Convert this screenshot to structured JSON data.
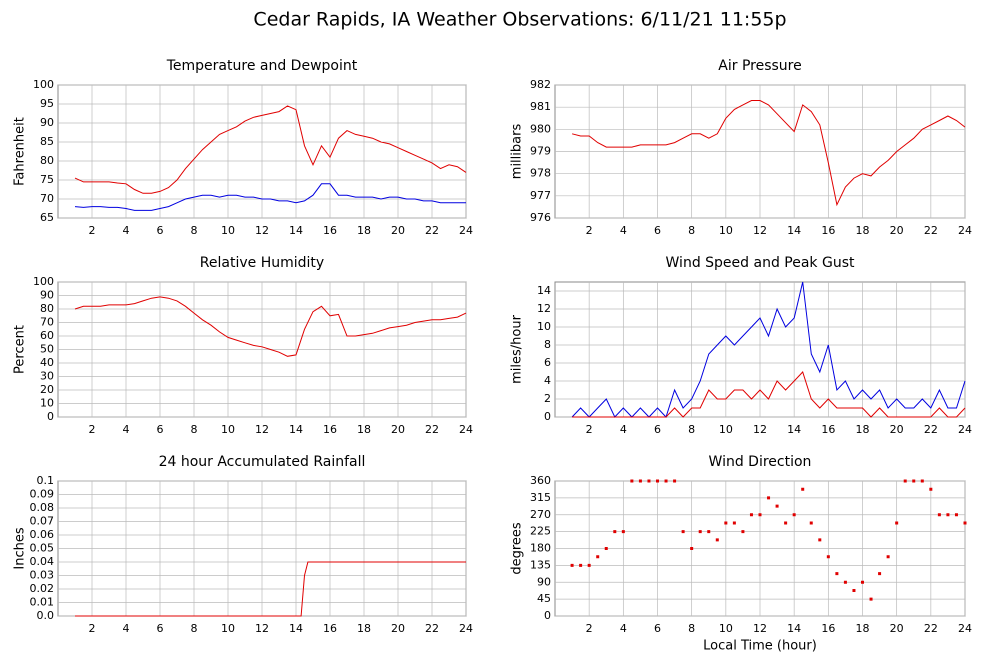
{
  "title": "Cedar Rapids, IA Weather Observations: 6/11/21 11:55p",
  "chart_data": [
    {
      "type": "line",
      "title": "Temperature and Dewpoint",
      "ylabel": "Fahrenheit",
      "x": [
        1,
        1.5,
        2,
        2.5,
        3,
        3.5,
        4,
        4.5,
        5,
        5.5,
        6,
        6.5,
        7,
        7.5,
        8,
        8.5,
        9,
        9.5,
        10,
        10.5,
        11,
        11.5,
        12,
        12.5,
        13,
        13.5,
        14,
        14.5,
        15,
        15.5,
        16,
        16.5,
        17,
        17.5,
        18,
        18.5,
        19,
        19.5,
        20,
        20.5,
        21,
        21.5,
        22,
        22.5,
        23,
        23.5,
        24
      ],
      "series": [
        {
          "color": "#e00000",
          "values": [
            75.5,
            74.5,
            74.5,
            74.5,
            74.5,
            74.2,
            74,
            72.5,
            71.5,
            71.5,
            72,
            73,
            75,
            78,
            80.5,
            83,
            85,
            87,
            88,
            89,
            90.5,
            91.5,
            92,
            92.5,
            93,
            94.5,
            93.5,
            84,
            79,
            84,
            81,
            86,
            88,
            87,
            86.5,
            86,
            85,
            84.5,
            83.5,
            82.5,
            81.5,
            80.5,
            79.5,
            78,
            79,
            78.5,
            77
          ]
        },
        {
          "color": "#0000e0",
          "values": [
            68,
            67.8,
            68,
            68,
            67.8,
            67.8,
            67.5,
            67,
            67,
            67,
            67.5,
            68,
            69,
            70,
            70.5,
            71,
            71,
            70.5,
            71,
            71,
            70.5,
            70.5,
            70,
            70,
            69.5,
            69.5,
            69,
            69.5,
            71,
            74,
            74,
            71,
            71,
            70.5,
            70.5,
            70.5,
            70,
            70.5,
            70.5,
            70,
            70,
            69.5,
            69.5,
            69,
            69,
            69,
            69
          ]
        }
      ],
      "xlim": [
        0,
        24
      ],
      "xticks": [
        2,
        4,
        6,
        8,
        10,
        12,
        14,
        16,
        18,
        20,
        22,
        24
      ],
      "ylim": [
        65,
        100
      ],
      "yticks": [
        65,
        70,
        75,
        80,
        85,
        90,
        95,
        100
      ],
      "grid": true
    },
    {
      "type": "line",
      "title": "Air Pressure",
      "ylabel": "millibars",
      "x": [
        1,
        1.5,
        2,
        2.5,
        3,
        3.5,
        4,
        4.5,
        5,
        5.5,
        6,
        6.5,
        7,
        7.5,
        8,
        8.5,
        9,
        9.5,
        10,
        10.5,
        11,
        11.5,
        12,
        12.5,
        13,
        13.5,
        14,
        14.5,
        15,
        15.5,
        16,
        16.5,
        17,
        17.5,
        18,
        18.5,
        19,
        19.5,
        20,
        20.5,
        21,
        21.5,
        22,
        22.5,
        23,
        23.5,
        24
      ],
      "series": [
        {
          "color": "#e00000",
          "values": [
            979.8,
            979.7,
            979.7,
            979.4,
            979.2,
            979.2,
            979.2,
            979.2,
            979.3,
            979.3,
            979.3,
            979.3,
            979.4,
            979.6,
            979.8,
            979.8,
            979.6,
            979.8,
            980.5,
            980.9,
            981.1,
            981.3,
            981.3,
            981.1,
            980.7,
            980.3,
            979.9,
            981.1,
            980.8,
            980.2,
            978.5,
            976.6,
            977.4,
            977.8,
            978,
            977.9,
            978.3,
            978.6,
            979,
            979.3,
            979.6,
            980,
            980.2,
            980.4,
            980.6,
            980.4,
            980.1
          ]
        }
      ],
      "xlim": [
        0,
        24
      ],
      "xticks": [
        2,
        4,
        6,
        8,
        10,
        12,
        14,
        16,
        18,
        20,
        22,
        24
      ],
      "ylim": [
        976,
        982
      ],
      "yticks": [
        976,
        977,
        978,
        979,
        980,
        981,
        982
      ],
      "grid": true
    },
    {
      "type": "line",
      "title": "Relative Humidity",
      "ylabel": "Percent",
      "x": [
        1,
        1.5,
        2,
        2.5,
        3,
        3.5,
        4,
        4.5,
        5,
        5.5,
        6,
        6.5,
        7,
        7.5,
        8,
        8.5,
        9,
        9.5,
        10,
        10.5,
        11,
        11.5,
        12,
        12.5,
        13,
        13.5,
        14,
        14.5,
        15,
        15.5,
        16,
        16.5,
        17,
        17.5,
        18,
        18.5,
        19,
        19.5,
        20,
        20.5,
        21,
        21.5,
        22,
        22.5,
        23,
        23.5,
        24
      ],
      "series": [
        {
          "color": "#e00000",
          "values": [
            80,
            82,
            82,
            82,
            83,
            83,
            83,
            84,
            86,
            88,
            89,
            88,
            86,
            82,
            77,
            72,
            68,
            63,
            59,
            57,
            55,
            53,
            52,
            50,
            48,
            45,
            46,
            65,
            78,
            82,
            75,
            76,
            60,
            60,
            61,
            62,
            64,
            66,
            67,
            68,
            70,
            71,
            72,
            72,
            73,
            74,
            77
          ]
        }
      ],
      "xlim": [
        0,
        24
      ],
      "xticks": [
        2,
        4,
        6,
        8,
        10,
        12,
        14,
        16,
        18,
        20,
        22,
        24
      ],
      "ylim": [
        0,
        100
      ],
      "yticks": [
        0,
        10,
        20,
        30,
        40,
        50,
        60,
        70,
        80,
        90,
        100
      ],
      "grid": true
    },
    {
      "type": "line",
      "title": "Wind Speed and Peak Gust",
      "ylabel": "miles/hour",
      "x": [
        1,
        1.5,
        2,
        2.5,
        3,
        3.5,
        4,
        4.5,
        5,
        5.5,
        6,
        6.5,
        7,
        7.5,
        8,
        8.5,
        9,
        9.5,
        10,
        10.5,
        11,
        11.5,
        12,
        12.5,
        13,
        13.5,
        14,
        14.5,
        15,
        15.5,
        16,
        16.5,
        17,
        17.5,
        18,
        18.5,
        19,
        19.5,
        20,
        20.5,
        21,
        21.5,
        22,
        22.5,
        23,
        23.5,
        24
      ],
      "series": [
        {
          "color": "#0000e0",
          "values": [
            0,
            1,
            0,
            1,
            2,
            0,
            1,
            0,
            1,
            0,
            1,
            0,
            3,
            1,
            2,
            4,
            7,
            8,
            9,
            8,
            9,
            10,
            11,
            9,
            12,
            10,
            11,
            15,
            7,
            5,
            8,
            3,
            4,
            2,
            3,
            2,
            3,
            1,
            2,
            1,
            1,
            2,
            1,
            3,
            1,
            1,
            4
          ]
        },
        {
          "color": "#e00000",
          "values": [
            0,
            0,
            0,
            0,
            0,
            0,
            0,
            0,
            0,
            0,
            0,
            0,
            1,
            0,
            1,
            1,
            3,
            2,
            2,
            3,
            3,
            2,
            3,
            2,
            4,
            3,
            4,
            5,
            2,
            1,
            2,
            1,
            1,
            1,
            1,
            0,
            1,
            0,
            0,
            0,
            0,
            0,
            0,
            1,
            0,
            0,
            1
          ]
        }
      ],
      "xlim": [
        0,
        24
      ],
      "xticks": [
        2,
        4,
        6,
        8,
        10,
        12,
        14,
        16,
        18,
        20,
        22,
        24
      ],
      "ylim": [
        0,
        15
      ],
      "yticks": [
        0,
        2,
        4,
        6,
        8,
        10,
        12,
        14
      ],
      "grid": true
    },
    {
      "type": "line",
      "title": "24 hour Accumulated Rainfall",
      "ylabel": "Inches",
      "x": [
        1,
        14.3,
        14.5,
        14.7,
        24
      ],
      "series": [
        {
          "color": "#e00000",
          "values": [
            0,
            0,
            0.03,
            0.04,
            0.04
          ]
        }
      ],
      "xlim": [
        0,
        24
      ],
      "xticks": [
        2,
        4,
        6,
        8,
        10,
        12,
        14,
        16,
        18,
        20,
        22,
        24
      ],
      "ylim": [
        0,
        0.1
      ],
      "yticks": [
        {
          "value": 0,
          "label": "0.0"
        },
        0.01,
        0.02,
        0.03,
        0.04,
        0.05,
        0.06,
        0.07,
        0.08,
        0.09,
        0.1
      ],
      "grid": true
    },
    {
      "type": "scatter",
      "title": "Wind Direction",
      "ylabel": "degrees",
      "xlabel": "Local Time (hour)",
      "x": [
        1,
        1.5,
        2,
        2.5,
        3,
        3.5,
        4,
        4.5,
        5,
        5.5,
        6,
        6.5,
        7,
        7.5,
        8,
        8.5,
        9,
        9.5,
        10,
        10.5,
        11,
        11.5,
        12,
        12.5,
        13,
        13.5,
        14,
        14.5,
        15,
        15.5,
        16,
        16.5,
        17,
        17.5,
        18,
        18.5,
        19,
        19.5,
        20,
        20.5,
        21,
        21.5,
        22,
        22.5,
        23,
        23.5,
        24
      ],
      "series": [
        {
          "color": "#e00000",
          "values": [
            135,
            135,
            135,
            158,
            180,
            225,
            225,
            360,
            360,
            360,
            360,
            360,
            360,
            225,
            180,
            225,
            225,
            203,
            248,
            248,
            225,
            270,
            270,
            315,
            293,
            248,
            270,
            338,
            248,
            203,
            158,
            113,
            90,
            68,
            90,
            45,
            113,
            158,
            248,
            360,
            360,
            360,
            338,
            270,
            270,
            270,
            248
          ]
        }
      ],
      "xlim": [
        0,
        24
      ],
      "xticks": [
        2,
        4,
        6,
        8,
        10,
        12,
        14,
        16,
        18,
        20,
        22,
        24
      ],
      "ylim": [
        0,
        360
      ],
      "yticks": [
        0,
        45,
        90,
        135,
        180,
        225,
        270,
        315,
        360
      ],
      "grid": true
    }
  ]
}
